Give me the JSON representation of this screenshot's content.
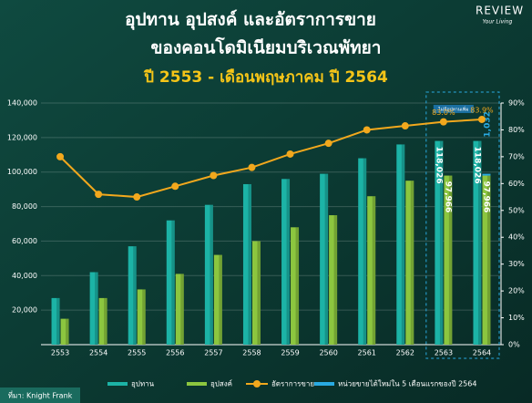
{
  "chart_data": {
    "type": "bar",
    "title": [
      "อุปทาน อุปสงค์ และอัตราการขาย",
      "ของคอนโดมิเนียมบริเวณพัทยา"
    ],
    "subtitle": "ปี 2553 - เดือนพฤษภาคม ปี 2564",
    "brand": "REVIEW",
    "brand_tagline": "Your Living",
    "source": "ที่มา: Knight Frank",
    "annotation": "ไม่มีอุปทานเพิ่ม",
    "categories": [
      "2553",
      "2554",
      "2555",
      "2556",
      "2557",
      "2558",
      "2559",
      "2560",
      "2561",
      "2562",
      "2563",
      "2564"
    ],
    "series": [
      {
        "name": "อุปทาน",
        "type": "bar",
        "color": "#1cb3a6",
        "values": [
          27000,
          42000,
          57000,
          72000,
          81000,
          93000,
          96000,
          99000,
          108000,
          116000,
          118026,
          118026
        ],
        "value_labels": [
          null,
          null,
          null,
          null,
          null,
          null,
          null,
          null,
          null,
          null,
          "118,026",
          "118,026"
        ]
      },
      {
        "name": "อุปสงค์",
        "type": "bar",
        "color": "#8cc63f",
        "values": [
          15000,
          27000,
          32000,
          41000,
          52000,
          60000,
          68000,
          75000,
          86000,
          95000,
          97966,
          97966
        ],
        "value_labels": [
          null,
          null,
          null,
          null,
          null,
          null,
          null,
          null,
          null,
          null,
          "97,966",
          "97,966"
        ]
      },
      {
        "name": "อัตราการขาย",
        "type": "line",
        "axis": "y2",
        "color": "#f2a81d",
        "values": [
          70,
          56,
          55,
          59,
          63,
          66,
          71,
          75,
          80,
          81.5,
          83.0,
          83.9
        ],
        "value_labels": [
          null,
          null,
          null,
          null,
          null,
          null,
          null,
          null,
          null,
          null,
          "83.0%",
          "83.9%"
        ]
      },
      {
        "name": "หน่วยขายได้ใหม่ใน 5 เดือนแรกของปี 2564",
        "type": "bar",
        "stack_on": 1,
        "color": "#29aae2",
        "values": [
          null,
          null,
          null,
          null,
          null,
          null,
          null,
          null,
          null,
          null,
          null,
          1032
        ],
        "value_labels": [
          null,
          null,
          null,
          null,
          null,
          null,
          null,
          null,
          null,
          null,
          null,
          "1,032"
        ]
      }
    ],
    "ylim": [
      0,
      140000
    ],
    "yticks": [
      {
        "value": 20000,
        "label": "20,000"
      },
      {
        "value": 40000,
        "label": "40,000"
      },
      {
        "value": 60000,
        "label": "60,000"
      },
      {
        "value": 80000,
        "label": "80,000"
      },
      {
        "value": 100000,
        "label": "100,000"
      },
      {
        "value": 120000,
        "label": "120,000"
      },
      {
        "value": 140000,
        "label": "140,000"
      }
    ],
    "y2lim": [
      0,
      90
    ],
    "y2ticks": [
      {
        "value": 0,
        "label": "0%"
      },
      {
        "value": 10,
        "label": "10%"
      },
      {
        "value": 20,
        "label": "20%"
      },
      {
        "value": 30,
        "label": "30%"
      },
      {
        "value": 40,
        "label": "40%"
      },
      {
        "value": 50,
        "label": "50%"
      },
      {
        "value": 60,
        "label": "60%"
      },
      {
        "value": 70,
        "label": "70%"
      },
      {
        "value": 80,
        "label": "80%"
      },
      {
        "value": 90,
        "label": "90%"
      }
    ],
    "grid": true
  }
}
